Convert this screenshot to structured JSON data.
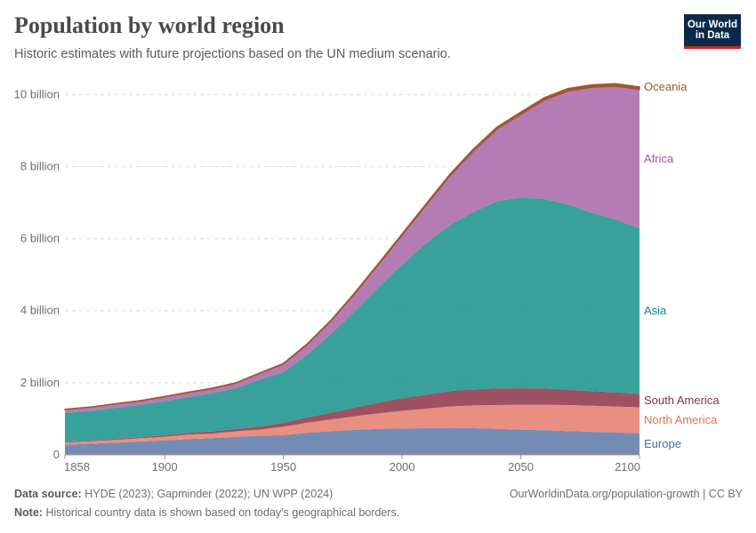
{
  "header": {
    "title": "Population by world region",
    "subtitle": "Historic estimates with future projections based on the UN medium scenario.",
    "logo_line1": "Our World",
    "logo_line2": "in Data"
  },
  "footer": {
    "source_label": "Data source:",
    "source_text": "HYDE (2023); Gapminder (2022); UN WPP (2024)",
    "note_label": "Note:",
    "note_text": "Historical country data is shown based on today's geographical borders.",
    "url_text": "OurWorldinData.org/population-growth | CC BY"
  },
  "chart_data": {
    "type": "area",
    "stacked": true,
    "x": [
      1858,
      1870,
      1880,
      1890,
      1900,
      1910,
      1920,
      1930,
      1940,
      1950,
      1960,
      1970,
      1980,
      1990,
      2000,
      2010,
      2020,
      2030,
      2040,
      2050,
      2060,
      2070,
      2080,
      2090,
      2100
    ],
    "series": [
      {
        "name": "Europe",
        "color": "#6d86b0",
        "values": [
          0.28,
          0.31,
          0.34,
          0.37,
          0.4,
          0.44,
          0.46,
          0.5,
          0.53,
          0.55,
          0.61,
          0.66,
          0.69,
          0.72,
          0.73,
          0.74,
          0.75,
          0.74,
          0.72,
          0.7,
          0.68,
          0.66,
          0.64,
          0.62,
          0.6
        ]
      },
      {
        "name": "North America",
        "color": "#e8897a",
        "values": [
          0.06,
          0.07,
          0.08,
          0.09,
          0.1,
          0.12,
          0.13,
          0.15,
          0.17,
          0.23,
          0.28,
          0.32,
          0.38,
          0.43,
          0.49,
          0.54,
          0.59,
          0.63,
          0.66,
          0.69,
          0.71,
          0.72,
          0.72,
          0.72,
          0.72
        ]
      },
      {
        "name": "South America",
        "color": "#99485b",
        "values": [
          0.02,
          0.02,
          0.03,
          0.03,
          0.04,
          0.05,
          0.06,
          0.07,
          0.09,
          0.11,
          0.15,
          0.19,
          0.24,
          0.3,
          0.35,
          0.39,
          0.43,
          0.45,
          0.46,
          0.46,
          0.45,
          0.43,
          0.41,
          0.39,
          0.37
        ]
      },
      {
        "name": "Asia",
        "color": "#2e9c96",
        "values": [
          0.8,
          0.83,
          0.86,
          0.9,
          0.95,
          1.0,
          1.06,
          1.13,
          1.3,
          1.4,
          1.74,
          2.18,
          2.68,
          3.2,
          3.71,
          4.2,
          4.6,
          4.92,
          5.2,
          5.3,
          5.26,
          5.14,
          4.95,
          4.8,
          4.6
        ]
      },
      {
        "name": "Africa",
        "color": "#b174b0",
        "values": [
          0.1,
          0.1,
          0.11,
          0.11,
          0.12,
          0.12,
          0.13,
          0.14,
          0.17,
          0.23,
          0.28,
          0.36,
          0.48,
          0.63,
          0.82,
          1.05,
          1.36,
          1.69,
          2.0,
          2.3,
          2.75,
          3.15,
          3.48,
          3.7,
          3.85
        ]
      },
      {
        "name": "Oceania",
        "color": "#a2562e",
        "values": [
          0.003,
          0.004,
          0.004,
          0.005,
          0.006,
          0.007,
          0.008,
          0.009,
          0.011,
          0.013,
          0.016,
          0.02,
          0.023,
          0.027,
          0.031,
          0.037,
          0.043,
          0.049,
          0.054,
          0.058,
          0.062,
          0.065,
          0.067,
          0.068,
          0.069
        ]
      }
    ],
    "y_unit": "billion",
    "x_ticks": [
      1858,
      1900,
      1950,
      2000,
      2050,
      2100
    ],
    "y_ticks": [
      0,
      2,
      4,
      6,
      8,
      10
    ],
    "y_tick_labels": [
      "0",
      "2 billion",
      "4 billion",
      "6 billion",
      "8 billion",
      "10 billion"
    ],
    "xlim": [
      1858,
      2100
    ],
    "ylim": [
      0,
      10.6
    ],
    "grid": "horizontal dashed",
    "legend": "right-of-chart inline labels"
  }
}
